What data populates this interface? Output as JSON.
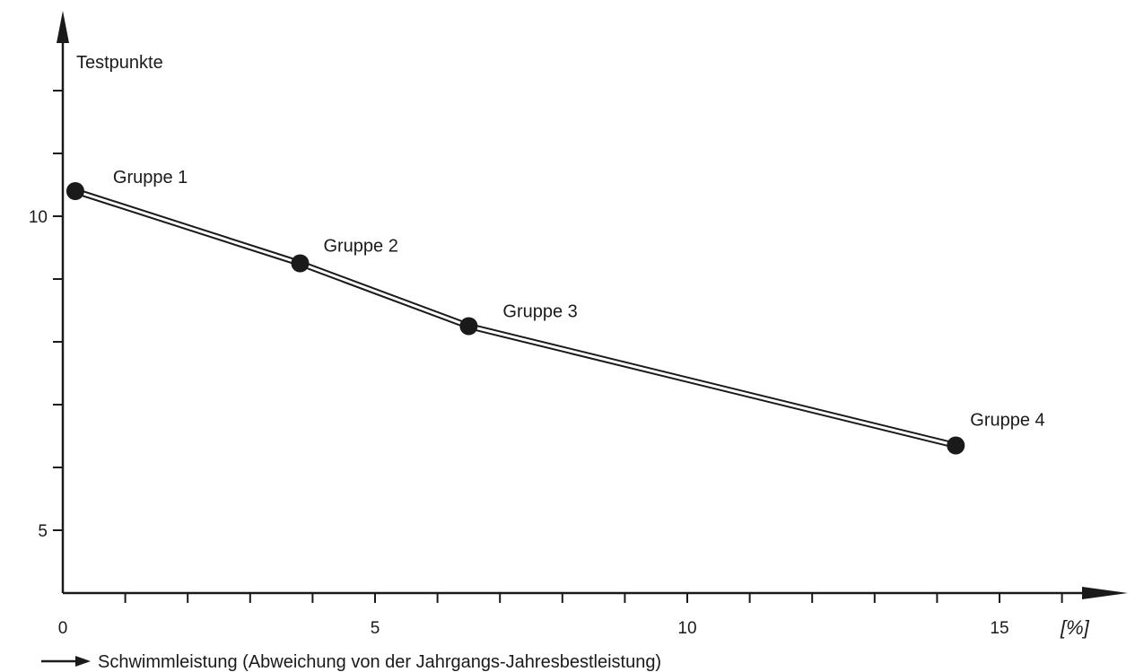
{
  "chart_data": {
    "type": "line",
    "title": "",
    "xlabel": "Schwimmleistung (Abweichung von der Jahrgangs-Jahresbestleistung)",
    "ylabel": "Testpunkte",
    "x_unit": "[%]",
    "xlim": [
      0,
      16.8
    ],
    "ylim": [
      4,
      12.6
    ],
    "x_ticks": [
      0,
      5,
      10,
      15
    ],
    "x_tick_labels": [
      "0",
      "5",
      "10",
      "15"
    ],
    "x_minor_ticks": [
      1,
      2,
      3,
      4,
      6,
      7,
      8,
      9,
      11,
      12,
      13,
      14,
      16
    ],
    "y_ticks": [
      5,
      10
    ],
    "y_tick_labels": [
      "5",
      "10"
    ],
    "y_minor_ticks": [
      6,
      7,
      8,
      9,
      11,
      12
    ],
    "grid": false,
    "legend": "none",
    "series": [
      {
        "x": [
          0.2,
          3.8,
          6.5,
          14.3
        ],
        "y": [
          10.4,
          9.25,
          8.25,
          6.35
        ],
        "point_labels": [
          "Gruppe 1",
          "Gruppe 2",
          "Gruppe 3",
          "Gruppe 4"
        ]
      }
    ],
    "colors": {
      "ink": "#1a1a1a",
      "background": "#ffffff"
    }
  }
}
